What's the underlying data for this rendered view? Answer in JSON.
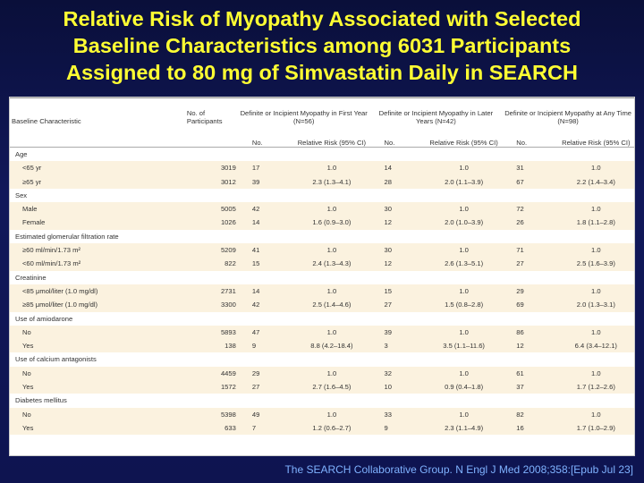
{
  "title_lines": [
    "Relative Risk of Myopathy Associated with Selected",
    "Baseline Characteristics among 6031 Participants",
    "Assigned to 80 mg of Simvastatin Daily in SEARCH"
  ],
  "table": {
    "header": {
      "baseline": "Baseline Characteristic",
      "participants": "No. of Participants",
      "groups": [
        "Definite or Incipient Myopathy in First Year (N=56)",
        "Definite or Incipient Myopathy in Later Years (N=42)",
        "Definite or Incipient Myopathy at Any Time (N=98)"
      ],
      "no": "No.",
      "rr": "Relative Risk (95% CI)"
    },
    "rows": [
      {
        "type": "cat",
        "label": "Age"
      },
      {
        "type": "row",
        "label": "<65 yr",
        "n": "3019",
        "a": "17",
        "ar": "1.0",
        "b": "14",
        "br": "1.0",
        "c": "31",
        "cr": "1.0"
      },
      {
        "type": "row",
        "label": "≥65 yr",
        "n": "3012",
        "a": "39",
        "ar": "2.3 (1.3–4.1)",
        "b": "28",
        "br": "2.0 (1.1–3.9)",
        "c": "67",
        "cr": "2.2 (1.4–3.4)"
      },
      {
        "type": "cat",
        "label": "Sex"
      },
      {
        "type": "row",
        "label": "Male",
        "n": "5005",
        "a": "42",
        "ar": "1.0",
        "b": "30",
        "br": "1.0",
        "c": "72",
        "cr": "1.0"
      },
      {
        "type": "row",
        "label": "Female",
        "n": "1026",
        "a": "14",
        "ar": "1.6 (0.9–3.0)",
        "b": "12",
        "br": "2.0 (1.0–3.9)",
        "c": "26",
        "cr": "1.8 (1.1–2.8)"
      },
      {
        "type": "cat",
        "label": "Estimated glomerular filtration rate"
      },
      {
        "type": "row",
        "label": "≥60 ml/min/1.73 m²",
        "n": "5209",
        "a": "41",
        "ar": "1.0",
        "b": "30",
        "br": "1.0",
        "c": "71",
        "cr": "1.0"
      },
      {
        "type": "row",
        "label": "<60 ml/min/1.73 m²",
        "n": "822",
        "a": "15",
        "ar": "2.4 (1.3–4.3)",
        "b": "12",
        "br": "2.6 (1.3–5.1)",
        "c": "27",
        "cr": "2.5 (1.6–3.9)"
      },
      {
        "type": "cat",
        "label": "Creatinine"
      },
      {
        "type": "row",
        "label": "<85 μmol/liter (1.0 mg/dl)",
        "n": "2731",
        "a": "14",
        "ar": "1.0",
        "b": "15",
        "br": "1.0",
        "c": "29",
        "cr": "1.0"
      },
      {
        "type": "row",
        "label": "≥85 μmol/liter (1.0 mg/dl)",
        "n": "3300",
        "a": "42",
        "ar": "2.5 (1.4–4.6)",
        "b": "27",
        "br": "1.5 (0.8–2.8)",
        "c": "69",
        "cr": "2.0 (1.3–3.1)"
      },
      {
        "type": "cat",
        "label": "Use of amiodarone"
      },
      {
        "type": "row",
        "label": "No",
        "n": "5893",
        "a": "47",
        "ar": "1.0",
        "b": "39",
        "br": "1.0",
        "c": "86",
        "cr": "1.0"
      },
      {
        "type": "row",
        "label": "Yes",
        "n": "138",
        "a": "9",
        "ar": "8.8 (4.2–18.4)",
        "b": "3",
        "br": "3.5 (1.1–11.6)",
        "c": "12",
        "cr": "6.4 (3.4–12.1)"
      },
      {
        "type": "cat",
        "label": "Use of calcium antagonists"
      },
      {
        "type": "row",
        "label": "No",
        "n": "4459",
        "a": "29",
        "ar": "1.0",
        "b": "32",
        "br": "1.0",
        "c": "61",
        "cr": "1.0"
      },
      {
        "type": "row",
        "label": "Yes",
        "n": "1572",
        "a": "27",
        "ar": "2.7 (1.6–4.5)",
        "b": "10",
        "br": "0.9 (0.4–1.8)",
        "c": "37",
        "cr": "1.7 (1.2–2.6)"
      },
      {
        "type": "cat",
        "label": "Diabetes mellitus"
      },
      {
        "type": "row",
        "label": "No",
        "n": "5398",
        "a": "49",
        "ar": "1.0",
        "b": "33",
        "br": "1.0",
        "c": "82",
        "cr": "1.0"
      },
      {
        "type": "row",
        "label": "Yes",
        "n": "633",
        "a": "7",
        "ar": "1.2 (0.6–2.7)",
        "b": "9",
        "br": "2.3 (1.1–4.9)",
        "c": "16",
        "cr": "1.7 (1.0–2.9)"
      }
    ]
  },
  "citation": "The SEARCH Collaborative Group. N Engl J Med 2008;358:[Epub Jul 23]"
}
